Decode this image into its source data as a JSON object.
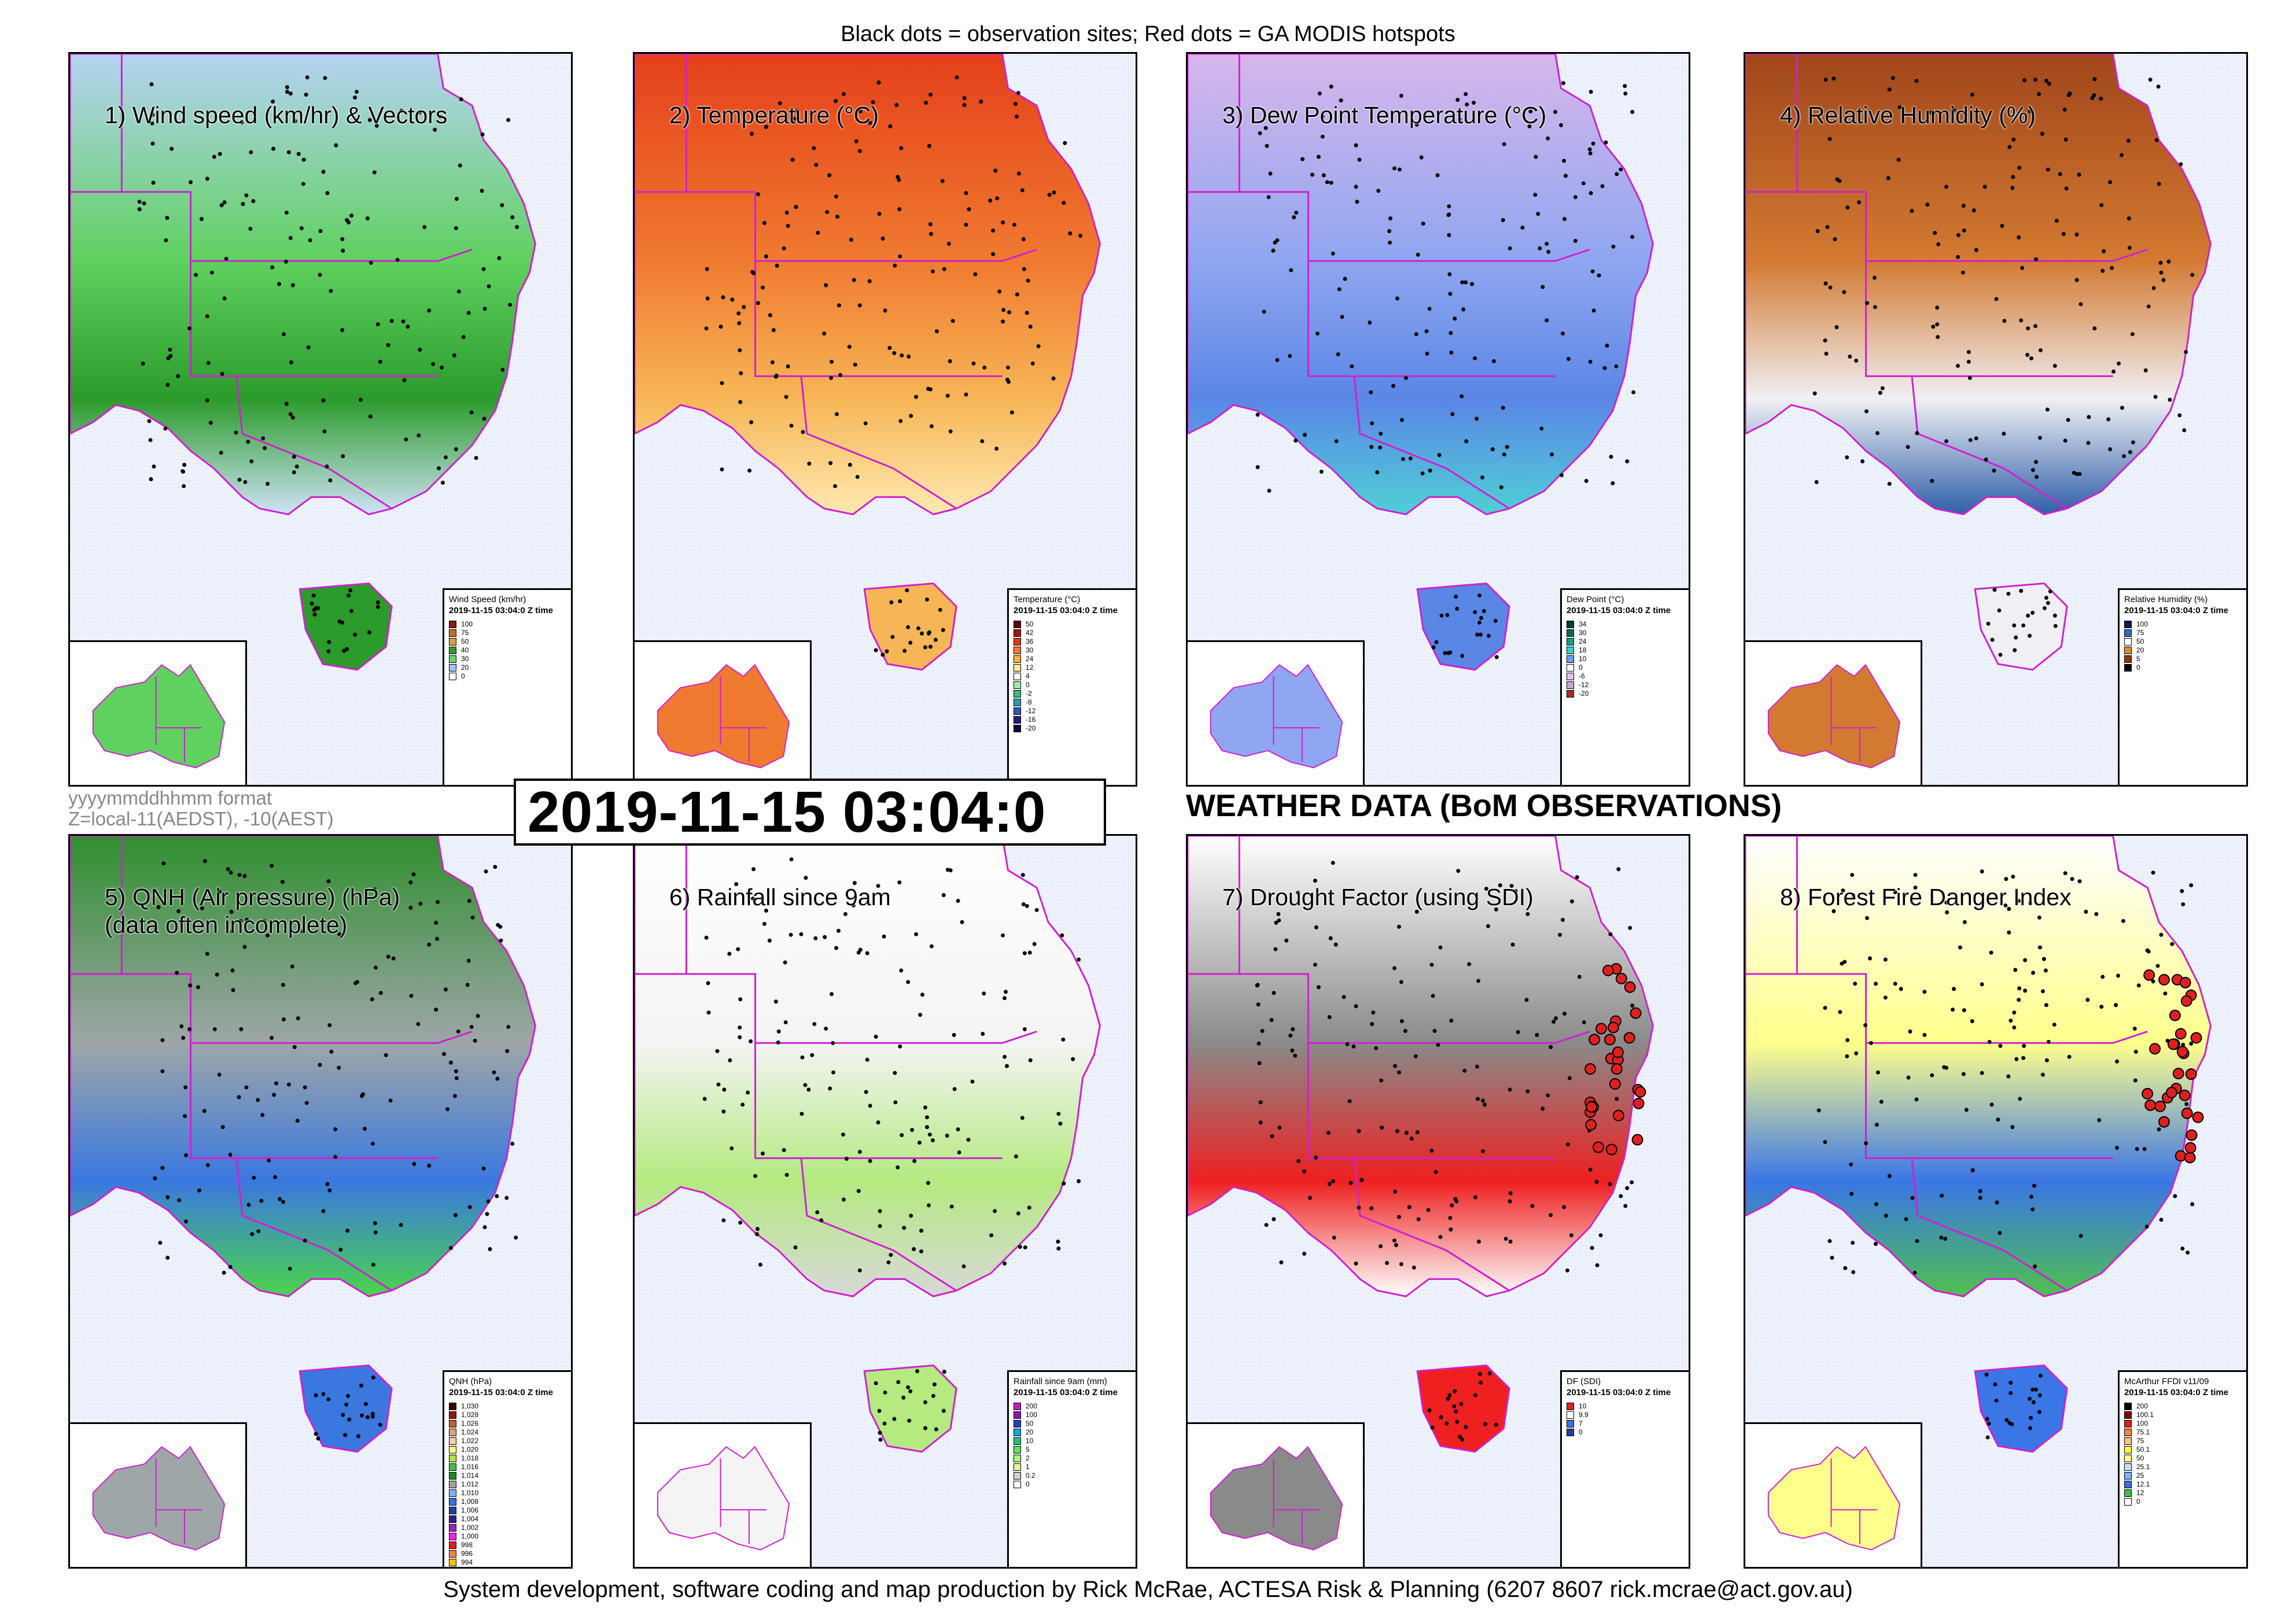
{
  "header": {
    "top_note": "Black dots = observation sites; Red dots = GA MODIS hotspots",
    "main_title": "WEATHER DATA (BoM OBSERVATIONS)",
    "timestamp": "2019-11-15 03:04:0",
    "format_line1": "yyyymmddhhmm format",
    "format_line2": "Z=local-11(AEDST), -10(AEST)",
    "credit": "System development, software coding and map production by Rick McRae, ACTESA Risk & Planning (6207 8607 rick.mcrae@act.gov.au)"
  },
  "panels": [
    {
      "title": "1) Wind speed (km/hr) & Vectors",
      "legend_title": "Wind Speed (km/hr)",
      "legend_date": "2019-11-15 03:04:0 Z time",
      "legend_items": [
        {
          "label": "100",
          "color": "#8b1a1a"
        },
        {
          "label": "75",
          "color": "#c86a20"
        },
        {
          "label": "50",
          "color": "#d9a23a"
        },
        {
          "label": "40",
          "color": "#2e9b2e"
        },
        {
          "label": "30",
          "color": "#6ad36a"
        },
        {
          "label": "20",
          "color": "#9ec6ea"
        },
        {
          "label": "0",
          "color": "#ffffff"
        }
      ]
    },
    {
      "title": "2) Temperature (°C)",
      "legend_title": "Temperature (°C)",
      "legend_date": "2019-11-15 03:04:0 Z time",
      "legend_items": [
        {
          "label": "50",
          "color": "#5a0000"
        },
        {
          "label": "42",
          "color": "#a31212"
        },
        {
          "label": "36",
          "color": "#e43a12"
        },
        {
          "label": "30",
          "color": "#f27a2a"
        },
        {
          "label": "24",
          "color": "#f7b04a"
        },
        {
          "label": "12",
          "color": "#ffeaa0"
        },
        {
          "label": "4",
          "color": "#ffffff"
        },
        {
          "label": "0",
          "color": "#a8e6a8"
        },
        {
          "label": "-2",
          "color": "#3cb878"
        },
        {
          "label": "-8",
          "color": "#2e9ab0"
        },
        {
          "label": "-12",
          "color": "#2e5ab0"
        },
        {
          "label": "-16",
          "color": "#20207a"
        },
        {
          "label": "-20",
          "color": "#100040"
        }
      ]
    },
    {
      "title": "3) Dew Point Temperature (°C)",
      "legend_title": "Dew Point (°C)",
      "legend_date": "2019-11-15 03:04:0 Z time",
      "legend_items": [
        {
          "label": "34",
          "color": "#003a3a"
        },
        {
          "label": "30",
          "color": "#006a50"
        },
        {
          "label": "24",
          "color": "#10a080"
        },
        {
          "label": "18",
          "color": "#30d0d0"
        },
        {
          "label": "10",
          "color": "#6aa0ff"
        },
        {
          "label": "0",
          "color": "#ffffff"
        },
        {
          "label": "-6",
          "color": "#e0c0f0"
        },
        {
          "label": "-12",
          "color": "#c8a8c8"
        },
        {
          "label": "-20",
          "color": "#a03030"
        }
      ]
    },
    {
      "title": "4) Relative Humidity (%)",
      "legend_title": "Relative Humidity (%)",
      "legend_date": "2019-11-15 03:04:0 Z time",
      "legend_items": [
        {
          "label": "100",
          "color": "#0a1a5a"
        },
        {
          "label": "75",
          "color": "#3a6ab0"
        },
        {
          "label": "50",
          "color": "#ffffff"
        },
        {
          "label": "20",
          "color": "#e08a3a"
        },
        {
          "label": "5",
          "color": "#8a3a08"
        },
        {
          "label": "0",
          "color": "#000000"
        }
      ]
    },
    {
      "title": "5) QNH (Air pressure) (hPa)\n(data often incomplete)",
      "legend_title": "QNH (hPa)",
      "legend_date": "2019-11-15 03:04:0 Z time",
      "legend_items": [
        {
          "label": "1,030",
          "color": "#3a0000"
        },
        {
          "label": "1,028",
          "color": "#8a1a1a"
        },
        {
          "label": "1,026",
          "color": "#c85a30"
        },
        {
          "label": "1,024",
          "color": "#e0a080"
        },
        {
          "label": "1,022",
          "color": "#f0d0b0"
        },
        {
          "label": "1,020",
          "color": "#ffff80"
        },
        {
          "label": "1,018",
          "color": "#b0e040"
        },
        {
          "label": "1,016",
          "color": "#40c040"
        },
        {
          "label": "1,014",
          "color": "#1a8a1a"
        },
        {
          "label": "1,012",
          "color": "#a0a0a0"
        },
        {
          "label": "1,010",
          "color": "#80b0ff"
        },
        {
          "label": "1,008",
          "color": "#3a70e0"
        },
        {
          "label": "1,006",
          "color": "#2040a0"
        },
        {
          "label": "1,004",
          "color": "#302080"
        },
        {
          "label": "1,002",
          "color": "#a020c0"
        },
        {
          "label": "1,000",
          "color": "#ff20ff"
        },
        {
          "label": "998",
          "color": "#e02020"
        },
        {
          "label": "996",
          "color": "#ff8040"
        },
        {
          "label": "994",
          "color": "#ffc000"
        }
      ]
    },
    {
      "title": "6) Rainfall since 9am",
      "legend_title": "Rainfall since 9am (mm)",
      "legend_date": "2019-11-15 03:04:0 Z time",
      "legend_items": [
        {
          "label": "200",
          "color": "#c020c0"
        },
        {
          "label": "100",
          "color": "#8020a0"
        },
        {
          "label": "50",
          "color": "#2040c0"
        },
        {
          "label": "20",
          "color": "#20a0e0"
        },
        {
          "label": "10",
          "color": "#20c080"
        },
        {
          "label": "5",
          "color": "#60e060"
        },
        {
          "label": "2",
          "color": "#b0f080"
        },
        {
          "label": "1",
          "color": "#e0f0a0"
        },
        {
          "label": "0.2",
          "color": "#d0d0d0"
        },
        {
          "label": "0",
          "color": "#ffffff"
        }
      ]
    },
    {
      "title": "7) Drought Factor (using SDI)",
      "legend_title": "DF (SDI)",
      "legend_date": "2019-11-15 03:04:0 Z time",
      "legend_items": [
        {
          "label": "10",
          "color": "#e02020"
        },
        {
          "label": "9.9",
          "color": "#ffffff"
        },
        {
          "label": "7",
          "color": "#3a70e0"
        },
        {
          "label": "0",
          "color": "#2040a0"
        }
      ]
    },
    {
      "title": "8) Forest Fire Danger Index",
      "legend_title": "McArthur FFDI v11/09",
      "legend_date": "2019-11-15 03:04:0 Z time",
      "legend_items": [
        {
          "label": "200",
          "color": "#000000"
        },
        {
          "label": "100.1",
          "color": "#800000"
        },
        {
          "label": "100",
          "color": "#e02020"
        },
        {
          "label": "75.1",
          "color": "#ff8040"
        },
        {
          "label": "75",
          "color": "#ffc080"
        },
        {
          "label": "50.1",
          "color": "#ffff40"
        },
        {
          "label": "50",
          "color": "#ffff90"
        },
        {
          "label": "25.1",
          "color": "#c0e0ff"
        },
        {
          "label": "25",
          "color": "#80b0ff"
        },
        {
          "label": "12.1",
          "color": "#3a70e0"
        },
        {
          "label": "12",
          "color": "#40c040"
        },
        {
          "label": "0",
          "color": "#ffffff"
        }
      ]
    }
  ],
  "colors": {
    "border_magenta": "#e020e0",
    "sea_blue": "#e8eefb",
    "station_dot": "#000000",
    "hotspot_red": "#e02020"
  }
}
